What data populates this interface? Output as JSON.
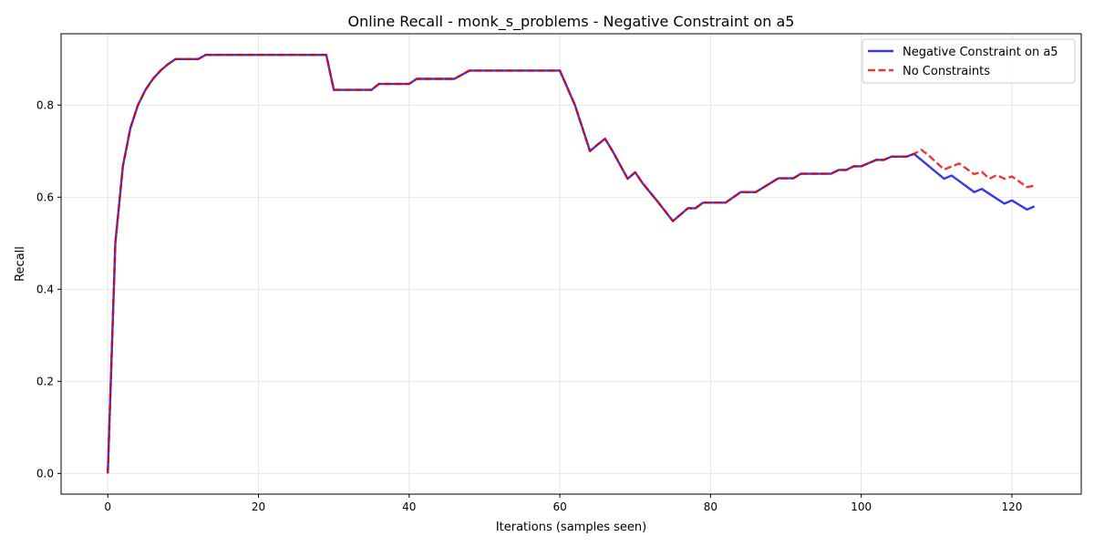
{
  "chart_data": {
    "type": "line",
    "title": "Online Recall - monk_s_problems - Negative Constraint on a5",
    "xlabel": "Iterations (samples seen)",
    "ylabel": "Recall",
    "xlim": [
      -6.2,
      129.2
    ],
    "ylim": [
      -0.045,
      0.955
    ],
    "xticks": [
      0,
      20,
      40,
      60,
      80,
      100,
      120
    ],
    "yticks": [
      0.0,
      0.2,
      0.4,
      0.6,
      0.8
    ],
    "grid": true,
    "legend_position": "top-right",
    "series": [
      {
        "name": "Negative Constraint on a5",
        "color": "#0000e0",
        "style": "solid",
        "points": [
          [
            0,
            0.0
          ],
          [
            1,
            0.5
          ],
          [
            2,
            0.667
          ],
          [
            3,
            0.75
          ],
          [
            4,
            0.8
          ],
          [
            5,
            0.833
          ],
          [
            6,
            0.857
          ],
          [
            7,
            0.875
          ],
          [
            8,
            0.889
          ],
          [
            9,
            0.9
          ],
          [
            10,
            0.9
          ],
          [
            11,
            0.9
          ],
          [
            12,
            0.9
          ],
          [
            13,
            0.909
          ],
          [
            14,
            0.909
          ],
          [
            20,
            0.909
          ],
          [
            29,
            0.909
          ],
          [
            30,
            0.833
          ],
          [
            35,
            0.833
          ],
          [
            36,
            0.846
          ],
          [
            40,
            0.846
          ],
          [
            41,
            0.857
          ],
          [
            46,
            0.857
          ],
          [
            48,
            0.875
          ],
          [
            60,
            0.875
          ],
          [
            62,
            0.8
          ],
          [
            63,
            0.75
          ],
          [
            64,
            0.7
          ],
          [
            65,
            0.714
          ],
          [
            66,
            0.727
          ],
          [
            67,
            0.7
          ],
          [
            69,
            0.64
          ],
          [
            70,
            0.654
          ],
          [
            71,
            0.63
          ],
          [
            73,
            0.59
          ],
          [
            75,
            0.548
          ],
          [
            77,
            0.576
          ],
          [
            78,
            0.576
          ],
          [
            79,
            0.588
          ],
          [
            82,
            0.588
          ],
          [
            84,
            0.611
          ],
          [
            86,
            0.611
          ],
          [
            89,
            0.641
          ],
          [
            91,
            0.641
          ],
          [
            92,
            0.651
          ],
          [
            96,
            0.651
          ],
          [
            97,
            0.659
          ],
          [
            98,
            0.659
          ],
          [
            99,
            0.667
          ],
          [
            100,
            0.667
          ],
          [
            102,
            0.681
          ],
          [
            103,
            0.681
          ],
          [
            104,
            0.688
          ],
          [
            106,
            0.688
          ],
          [
            107,
            0.694
          ],
          [
            109,
            0.667
          ],
          [
            111,
            0.64
          ],
          [
            112,
            0.647
          ],
          [
            115,
            0.611
          ],
          [
            116,
            0.618
          ],
          [
            119,
            0.586
          ],
          [
            120,
            0.593
          ],
          [
            122,
            0.573
          ],
          [
            123,
            0.58
          ]
        ]
      },
      {
        "name": "No Constraints",
        "color": "#e00000",
        "style": "dashed",
        "points": [
          [
            0,
            0.0
          ],
          [
            1,
            0.5
          ],
          [
            2,
            0.667
          ],
          [
            3,
            0.75
          ],
          [
            4,
            0.8
          ],
          [
            5,
            0.833
          ],
          [
            6,
            0.857
          ],
          [
            7,
            0.875
          ],
          [
            8,
            0.889
          ],
          [
            9,
            0.9
          ],
          [
            10,
            0.9
          ],
          [
            11,
            0.9
          ],
          [
            12,
            0.9
          ],
          [
            13,
            0.909
          ],
          [
            14,
            0.909
          ],
          [
            20,
            0.909
          ],
          [
            29,
            0.909
          ],
          [
            30,
            0.833
          ],
          [
            35,
            0.833
          ],
          [
            36,
            0.846
          ],
          [
            40,
            0.846
          ],
          [
            41,
            0.857
          ],
          [
            46,
            0.857
          ],
          [
            48,
            0.875
          ],
          [
            60,
            0.875
          ],
          [
            62,
            0.8
          ],
          [
            63,
            0.75
          ],
          [
            64,
            0.7
          ],
          [
            65,
            0.714
          ],
          [
            66,
            0.727
          ],
          [
            67,
            0.7
          ],
          [
            69,
            0.64
          ],
          [
            70,
            0.654
          ],
          [
            71,
            0.63
          ],
          [
            73,
            0.59
          ],
          [
            75,
            0.548
          ],
          [
            77,
            0.576
          ],
          [
            78,
            0.576
          ],
          [
            79,
            0.588
          ],
          [
            82,
            0.588
          ],
          [
            84,
            0.611
          ],
          [
            86,
            0.611
          ],
          [
            89,
            0.641
          ],
          [
            91,
            0.641
          ],
          [
            92,
            0.651
          ],
          [
            96,
            0.651
          ],
          [
            97,
            0.659
          ],
          [
            98,
            0.659
          ],
          [
            99,
            0.667
          ],
          [
            100,
            0.667
          ],
          [
            102,
            0.681
          ],
          [
            103,
            0.681
          ],
          [
            104,
            0.688
          ],
          [
            106,
            0.688
          ],
          [
            107,
            0.694
          ],
          [
            108,
            0.703
          ],
          [
            109,
            0.69
          ],
          [
            111,
            0.66
          ],
          [
            113,
            0.673
          ],
          [
            115,
            0.65
          ],
          [
            116,
            0.655
          ],
          [
            117,
            0.64
          ],
          [
            118,
            0.648
          ],
          [
            119,
            0.64
          ],
          [
            120,
            0.645
          ],
          [
            122,
            0.622
          ],
          [
            123,
            0.625
          ]
        ]
      }
    ]
  }
}
